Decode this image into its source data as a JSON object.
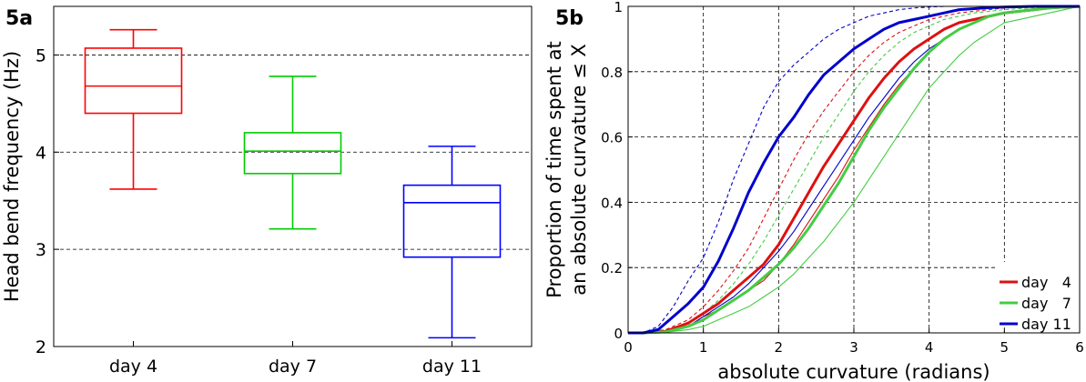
{
  "panel_a_label": "5a",
  "panel_b_label": "5b",
  "chart_data": [
    {
      "type": "box",
      "title": "",
      "xlabel": "",
      "ylabel": "Head bend frequency (Hz)",
      "ylim": [
        2,
        5.5
      ],
      "yticks": [
        "2",
        "3",
        "4",
        "5"
      ],
      "grid": "horizontal dashed",
      "categories": [
        "day 4",
        "day 7",
        "day 11"
      ],
      "boxes": [
        {
          "category": "day 4",
          "whisker_low": 3.62,
          "q1": 4.4,
          "median": 4.68,
          "q3": 5.07,
          "whisker_high": 5.26,
          "color": "#ff0000"
        },
        {
          "category": "day 7",
          "whisker_low": 3.21,
          "q1": 3.78,
          "median": 4.01,
          "q3": 4.2,
          "whisker_high": 4.78,
          "color": "#00cc00"
        },
        {
          "category": "day 11",
          "whisker_low": 2.09,
          "q1": 2.92,
          "median": 3.48,
          "q3": 3.66,
          "whisker_high": 4.06,
          "color": "#0000ff"
        }
      ]
    },
    {
      "type": "line",
      "title": "",
      "xlabel": "absolute curvature (radians)",
      "ylabel_lines": [
        "Proportion of time spent at",
        "an absolute curvature ≤ X"
      ],
      "xlim": [
        0,
        6
      ],
      "ylim": [
        0,
        1
      ],
      "xticks": [
        "0",
        "1",
        "2",
        "3",
        "4",
        "5",
        "6"
      ],
      "yticks": [
        "0",
        "0.2",
        "0.4",
        "0.6",
        "0.8",
        "1"
      ],
      "grid": "dashed",
      "legend_position": "bottom-right",
      "legend": [
        {
          "label": "day   4",
          "color": "#dd1111"
        },
        {
          "label": "day   7",
          "color": "#44cc44"
        },
        {
          "label": "day 11",
          "color": "#0000cc"
        }
      ],
      "series": [
        {
          "group": "day 4",
          "style": "solid-thick",
          "color": "#dd1111",
          "x": [
            0,
            0.2,
            0.5,
            0.8,
            1.0,
            1.2,
            1.4,
            1.6,
            1.8,
            2.0,
            2.2,
            2.4,
            2.6,
            2.8,
            3.0,
            3.2,
            3.4,
            3.6,
            3.8,
            4.0,
            4.2,
            4.4,
            4.6,
            4.8,
            5.0,
            5.2,
            5.4,
            5.6,
            5.8,
            6.0
          ],
          "y": [
            0,
            0,
            0.005,
            0.03,
            0.06,
            0.09,
            0.13,
            0.17,
            0.21,
            0.27,
            0.35,
            0.43,
            0.51,
            0.58,
            0.65,
            0.72,
            0.78,
            0.83,
            0.87,
            0.9,
            0.93,
            0.95,
            0.96,
            0.97,
            0.98,
            0.985,
            0.99,
            0.995,
            0.998,
            1.0
          ]
        },
        {
          "group": "day 7",
          "style": "solid-thick",
          "color": "#44cc44",
          "x": [
            0,
            0.2,
            0.5,
            0.8,
            1.0,
            1.2,
            1.4,
            1.6,
            1.8,
            2.0,
            2.2,
            2.4,
            2.6,
            2.8,
            3.0,
            3.2,
            3.4,
            3.6,
            3.8,
            4.0,
            4.2,
            4.4,
            4.6,
            4.8,
            5.0,
            5.2,
            5.4,
            5.6,
            5.8,
            6.0
          ],
          "y": [
            0,
            0,
            0.003,
            0.02,
            0.04,
            0.07,
            0.1,
            0.13,
            0.17,
            0.21,
            0.26,
            0.32,
            0.39,
            0.46,
            0.54,
            0.62,
            0.69,
            0.75,
            0.81,
            0.86,
            0.9,
            0.93,
            0.95,
            0.97,
            0.98,
            0.985,
            0.99,
            0.995,
            0.998,
            1.0
          ]
        },
        {
          "group": "day 11",
          "style": "solid-thick",
          "color": "#0000cc",
          "x": [
            0,
            0.2,
            0.4,
            0.6,
            0.8,
            1.0,
            1.2,
            1.4,
            1.6,
            1.8,
            2.0,
            2.2,
            2.4,
            2.6,
            2.8,
            3.0,
            3.2,
            3.4,
            3.6,
            3.8,
            4.0,
            4.2,
            4.4,
            4.6,
            4.8,
            5.0,
            5.2,
            5.4,
            5.6,
            5.8,
            6.0
          ],
          "y": [
            0,
            0,
            0.01,
            0.05,
            0.09,
            0.14,
            0.22,
            0.32,
            0.43,
            0.52,
            0.6,
            0.66,
            0.73,
            0.79,
            0.83,
            0.87,
            0.9,
            0.93,
            0.95,
            0.96,
            0.97,
            0.98,
            0.99,
            0.993,
            0.996,
            0.998,
            0.999,
            1.0,
            1.0,
            1.0,
            1.0
          ]
        },
        {
          "group": "day 4",
          "style": "dashed-thin",
          "color": "#dd1111",
          "x": [
            0,
            0.2,
            0.5,
            0.8,
            1.0,
            1.2,
            1.4,
            1.6,
            1.8,
            2.0,
            2.2,
            2.4,
            2.6,
            2.8,
            3.0,
            3.2,
            3.4,
            3.6,
            3.8,
            4.0,
            4.2,
            4.4,
            4.6,
            4.8,
            5.0,
            5.2,
            5.4,
            5.6,
            5.8,
            6.0
          ],
          "y": [
            0,
            0,
            0.01,
            0.04,
            0.08,
            0.13,
            0.19,
            0.26,
            0.35,
            0.44,
            0.53,
            0.61,
            0.68,
            0.74,
            0.8,
            0.85,
            0.89,
            0.92,
            0.94,
            0.96,
            0.97,
            0.98,
            0.985,
            0.99,
            0.995,
            0.997,
            0.998,
            0.999,
            1.0,
            1.0
          ]
        },
        {
          "group": "day 4",
          "style": "solid-thin",
          "color": "#dd1111",
          "x": [
            0,
            0.2,
            0.5,
            0.8,
            1.0,
            1.2,
            1.4,
            1.6,
            1.8,
            2.0,
            2.2,
            2.4,
            2.6,
            2.8,
            3.0,
            3.2,
            3.4,
            3.6,
            3.8,
            4.0,
            4.2,
            4.4,
            4.6,
            4.8,
            5.0,
            5.2,
            5.4,
            5.6,
            5.8,
            6.0
          ],
          "y": [
            0,
            0,
            0.003,
            0.02,
            0.05,
            0.07,
            0.1,
            0.13,
            0.16,
            0.21,
            0.27,
            0.34,
            0.41,
            0.48,
            0.56,
            0.63,
            0.7,
            0.76,
            0.81,
            0.86,
            0.9,
            0.93,
            0.95,
            0.97,
            0.98,
            0.985,
            0.99,
            0.995,
            0.998,
            1.0
          ]
        },
        {
          "group": "day 7",
          "style": "dashed-thin",
          "color": "#44cc44",
          "x": [
            0,
            0.2,
            0.5,
            0.8,
            1.0,
            1.2,
            1.4,
            1.6,
            1.8,
            2.0,
            2.2,
            2.4,
            2.6,
            2.8,
            3.0,
            3.2,
            3.4,
            3.6,
            3.8,
            4.0,
            4.2,
            4.4,
            4.6,
            4.8,
            5.0,
            5.2,
            5.4,
            5.6,
            5.8,
            6.0
          ],
          "y": [
            0,
            0,
            0.006,
            0.03,
            0.06,
            0.1,
            0.15,
            0.21,
            0.28,
            0.36,
            0.44,
            0.52,
            0.6,
            0.67,
            0.74,
            0.8,
            0.85,
            0.89,
            0.92,
            0.94,
            0.96,
            0.97,
            0.98,
            0.985,
            0.99,
            0.993,
            0.996,
            0.998,
            0.999,
            1.0
          ]
        },
        {
          "group": "day 7",
          "style": "solid-thin",
          "color": "#44cc44",
          "x": [
            0,
            0.2,
            0.5,
            0.8,
            1.0,
            1.2,
            1.4,
            1.6,
            1.8,
            2.0,
            2.2,
            2.4,
            2.6,
            2.8,
            3.0,
            3.2,
            3.4,
            3.6,
            3.8,
            4.0,
            4.2,
            4.4,
            4.6,
            4.8,
            5.0,
            5.2,
            5.4,
            5.6,
            5.8,
            6.0
          ],
          "y": [
            0,
            0,
            0.002,
            0.01,
            0.02,
            0.04,
            0.06,
            0.08,
            0.11,
            0.14,
            0.18,
            0.23,
            0.28,
            0.34,
            0.4,
            0.47,
            0.54,
            0.61,
            0.68,
            0.75,
            0.8,
            0.85,
            0.89,
            0.92,
            0.95,
            0.96,
            0.97,
            0.98,
            0.99,
            1.0
          ]
        },
        {
          "group": "day 11",
          "style": "dashed-thin",
          "color": "#0000cc",
          "x": [
            0,
            0.2,
            0.4,
            0.6,
            0.8,
            1.0,
            1.2,
            1.4,
            1.6,
            1.8,
            2.0,
            2.2,
            2.4,
            2.6,
            2.8,
            3.0,
            3.2,
            3.4,
            3.6,
            3.8,
            4.0,
            4.2,
            4.4,
            4.6,
            4.8,
            5.0,
            5.2,
            5.4,
            5.6,
            5.8,
            6.0
          ],
          "y": [
            0,
            0,
            0.02,
            0.08,
            0.16,
            0.23,
            0.34,
            0.47,
            0.58,
            0.69,
            0.77,
            0.82,
            0.86,
            0.9,
            0.93,
            0.95,
            0.97,
            0.98,
            0.99,
            0.995,
            0.998,
            1.0,
            1.0,
            1.0,
            1.0,
            1.0,
            1.0,
            1.0,
            1.0,
            1.0,
            1.0
          ]
        },
        {
          "group": "day 11",
          "style": "solid-thin",
          "color": "#0000cc",
          "x": [
            0,
            0.2,
            0.5,
            0.8,
            1.0,
            1.2,
            1.4,
            1.6,
            1.8,
            2.0,
            2.2,
            2.4,
            2.6,
            2.8,
            3.0,
            3.2,
            3.4,
            3.6,
            3.8,
            4.0,
            4.2,
            4.4,
            4.6,
            4.8,
            5.0,
            5.2,
            5.4,
            5.6,
            5.8,
            6.0
          ],
          "y": [
            0,
            0,
            0.004,
            0.02,
            0.05,
            0.08,
            0.11,
            0.15,
            0.2,
            0.25,
            0.31,
            0.38,
            0.45,
            0.52,
            0.59,
            0.66,
            0.72,
            0.78,
            0.83,
            0.87,
            0.9,
            0.93,
            0.95,
            0.97,
            0.98,
            0.985,
            0.99,
            0.995,
            0.998,
            1.0
          ]
        }
      ]
    }
  ]
}
